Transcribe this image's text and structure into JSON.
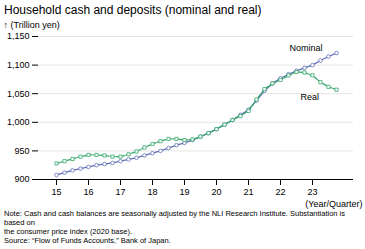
{
  "chart_data": {
    "type": "line",
    "title": "Household cash and deposits (nominal and real)",
    "ylabel": "(Trillion yen)",
    "xlabel": "(Year/Quarter)",
    "categories": [
      "15",
      null,
      null,
      null,
      "16",
      null,
      null,
      null,
      "17",
      null,
      null,
      null,
      "18",
      null,
      null,
      null,
      "19",
      null,
      null,
      null,
      "20",
      null,
      null,
      null,
      "21",
      null,
      null,
      null,
      "22",
      null,
      null,
      null,
      "23",
      null,
      null,
      null
    ],
    "series": [
      {
        "name": "Nominal",
        "color": "#6070b8",
        "marker": "circle",
        "line_style": "solid",
        "values": [
          908,
          912,
          916,
          919,
          922,
          925,
          927,
          929,
          932,
          935,
          938,
          942,
          946,
          950,
          955,
          960,
          964,
          969,
          975,
          981,
          988,
          996,
          1004,
          1013,
          1022,
          1038,
          1055,
          1068,
          1077,
          1084,
          1090,
          1095,
          1100,
          1108,
          1115,
          1121
        ]
      },
      {
        "name": "Real",
        "color": "#3aaa6e",
        "marker": "square",
        "line_style": "dashed",
        "values": [
          928,
          932,
          936,
          940,
          943,
          943,
          942,
          940,
          940,
          944,
          949,
          956,
          962,
          967,
          971,
          971,
          969,
          970,
          975,
          981,
          988,
          996,
          1004,
          1011,
          1020,
          1040,
          1058,
          1068,
          1074,
          1082,
          1088,
          1087,
          1082,
          1070,
          1062,
          1057
        ]
      }
    ],
    "ylim": [
      900,
      1150
    ],
    "yticks": [
      900,
      950,
      {
        "value": 1000,
        "label": "1,000"
      },
      {
        "value": 1050,
        "label": "1,050"
      },
      {
        "value": 1100,
        "label": "1,100"
      },
      {
        "value": 1150,
        "label": "1,150"
      }
    ],
    "grid": true,
    "annotations": [
      {
        "text": "Nominal",
        "series": "Nominal",
        "x": 34
      },
      {
        "text": "Real",
        "series": "Real",
        "x": 30
      }
    ],
    "notes": [
      "Note: Cash and cash balances are seasonally adjusted by the NLI Research Institute. Substantiation is based on",
      "the consumer price index (2020 base).",
      "Source: “Flow of Funds Accounts,” Bank of Japan."
    ]
  }
}
